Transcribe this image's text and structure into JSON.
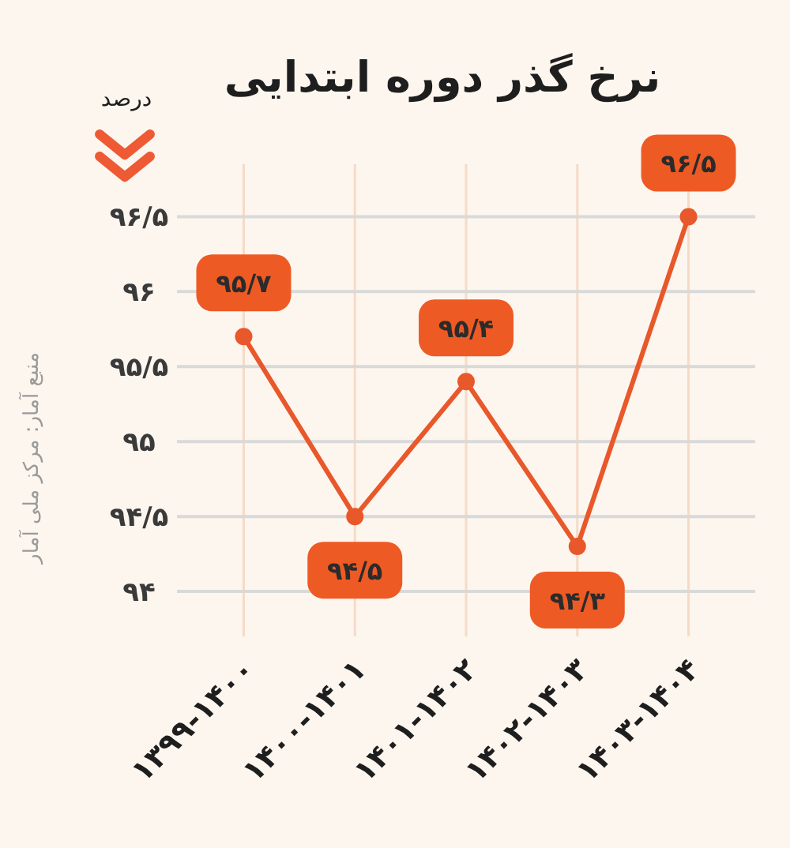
{
  "chart_data": {
    "type": "line",
    "title": "نرخ گذر دوره ابتدایی",
    "ylabel": "درصد",
    "annotations": [
      "منبع آمار: مرکز ملی آمار"
    ],
    "categories": [
      "۱۳۹۹-۱۴۰۰",
      "۱۴۰۰-۱۴۰۱",
      "۱۴۰۱-۱۴۰۲",
      "۱۴۰۲-۱۴۰۳",
      "۱۴۰۳-۱۴۰۴"
    ],
    "series": [
      {
        "color": "#e8582a",
        "values": [
          95.7,
          94.5,
          95.4,
          94.3,
          96.5
        ],
        "value_labels": [
          "۹۵/۷",
          "۹۴/۵",
          "۹۵/۴",
          "۹۴/۳",
          "۹۶/۵"
        ]
      }
    ],
    "ylim": [
      93.7,
      96.85
    ],
    "yticks": [
      {
        "value": 94,
        "label": "۹۴"
      },
      {
        "value": 94.5,
        "label": "۹۴/۵"
      },
      {
        "value": 95,
        "label": "۹۵"
      },
      {
        "value": 95.5,
        "label": "۹۵/۵"
      },
      {
        "value": 96,
        "label": "۹۶"
      },
      {
        "value": 96.5,
        "label": "۹۶/۵"
      }
    ],
    "grid": true,
    "marker": "circle",
    "line_style": "solid"
  }
}
